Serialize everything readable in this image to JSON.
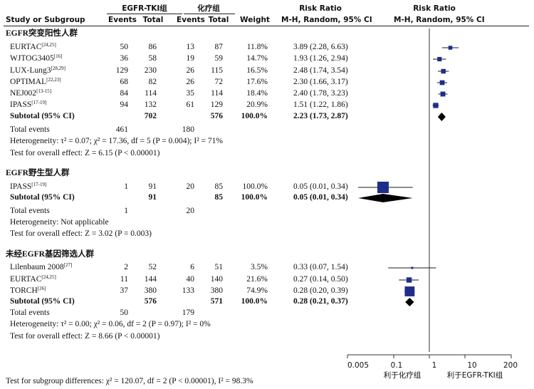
{
  "header": {
    "group1": "EGFR-TKI组",
    "group2": "化疗组",
    "rr_top": "Risk Ratio",
    "rr_top2": "Risk Ratio",
    "study": "Study or Subgroup",
    "events1": "Events",
    "total1": "Total",
    "events2": "Events",
    "total2": "Total",
    "weight": "Weight",
    "method": "M-H, Random, 95% CI",
    "method2": "M-H, Random, 95% CI"
  },
  "subgroups": [
    {
      "title": "EGFR突变阳性人群",
      "studies": [
        {
          "name": "EURTAC",
          "ref": "[24,25]",
          "e1": "50",
          "t1": "86",
          "e2": "13",
          "t2": "87",
          "w": "11.8%",
          "ci": "3.89 (2.28, 6.63)"
        },
        {
          "name": "WJTOG3405",
          "ref": "[16]",
          "e1": "36",
          "t1": "58",
          "e2": "19",
          "t2": "59",
          "w": "14.7%",
          "ci": "1.93 (1.26, 2.94)"
        },
        {
          "name": "LUX-Lung3",
          "ref": "[28,29]",
          "e1": "129",
          "t1": "230",
          "e2": "26",
          "t2": "115",
          "w": "16.5%",
          "ci": "2.48 (1.74, 3.54)"
        },
        {
          "name": "OPTIMAL",
          "ref": "[22,23]",
          "e1": "68",
          "t1": "82",
          "e2": "26",
          "t2": "72",
          "w": "17.6%",
          "ci": "2.30 (1.66, 3.17)"
        },
        {
          "name": "NEJ002",
          "ref": "[13-15]",
          "e1": "84",
          "t1": "114",
          "e2": "35",
          "t2": "114",
          "w": "18.4%",
          "ci": "2.40 (1.78, 3.23)"
        },
        {
          "name": "IPASS",
          "ref": "[17-19]",
          "e1": "94",
          "t1": "132",
          "e2": "61",
          "t2": "129",
          "w": "20.9%",
          "ci": "1.51 (1.22, 1.86)"
        }
      ],
      "subtotal": {
        "label": "Subtotal (95% CI)",
        "t1": "702",
        "t2": "576",
        "w": "100.0%",
        "ci": "2.23 (1.73, 2.87)"
      },
      "total_events": {
        "label": "Total events",
        "e1": "461",
        "e2": "180"
      },
      "heterogeneity": "Heterogeneity: τ² = 0.07; χ² = 17.36, df = 5 (P = 0.004); I² = 71%",
      "overall": "Test for overall effect: Z = 6.15 (P < 0.00001)"
    },
    {
      "title": "EGFR野生型人群",
      "studies": [
        {
          "name": "IPASS",
          "ref": "[17-19]",
          "e1": "1",
          "t1": "91",
          "e2": "20",
          "t2": "85",
          "w": "100.0%",
          "ci": "0.05 (0.01, 0.34)"
        }
      ],
      "subtotal": {
        "label": "Subtotal (95% CI)",
        "t1": "91",
        "t2": "85",
        "w": "100.0%",
        "ci": "0.05 (0.01, 0.34)"
      },
      "total_events": {
        "label": "Total events",
        "e1": "1",
        "e2": "20"
      },
      "heterogeneity": "Heterogeneity: Not applicable",
      "overall": "Test for overall effect: Z = 3.02 (P = 0.003)"
    },
    {
      "title": "未经EGFR基因筛选人群",
      "studies": [
        {
          "name": "Lilenbaum 2008",
          "ref": "[27]",
          "e1": "2",
          "t1": "52",
          "e2": "6",
          "t2": "51",
          "w": "3.5%",
          "ci": "0.33 (0.07, 1.54)"
        },
        {
          "name": "EURTAC",
          "ref": "[24,25]",
          "e1": "11",
          "t1": "144",
          "e2": "40",
          "t2": "140",
          "w": "21.6%",
          "ci": "0.27 (0.14, 0.50)"
        },
        {
          "name": "TORCH",
          "ref": "[26]",
          "e1": "37",
          "t1": "380",
          "e2": "133",
          "t2": "380",
          "w": "74.9%",
          "ci": "0.28 (0.20, 0.39)"
        }
      ],
      "subtotal": {
        "label": "Subtotal (95% CI)",
        "t1": "576",
        "t2": "571",
        "w": "100.0%",
        "ci": "0.28 (0.21, 0.37)"
      },
      "total_events": {
        "label": "Total events",
        "e1": "50",
        "e2": "179"
      },
      "heterogeneity": "Heterogeneity: τ² = 0.00; χ² = 0.06, df = 2 (P = 0.97); I² = 0%",
      "overall": "Test for overall effect: Z = 8.66 (P < 0.00001)"
    }
  ],
  "footer": "Test for subgroup differences: χ² = 120.07, df = 2 (P < 0.00001), I² = 98.3%",
  "axis": {
    "ticks": [
      "0.005",
      "0.1",
      "1",
      "10",
      "200"
    ],
    "favours_left": "利于化疗组",
    "favours_right": "利于EGFR-TKI组"
  },
  "chart_data": {
    "type": "forest",
    "xscale": "log",
    "xlim": [
      0.005,
      200
    ],
    "reference_line": 1,
    "colors": {
      "box": "#1f2d8a",
      "diamond": "#000000"
    },
    "studies": [
      {
        "group": 0,
        "name": "EURTAC",
        "rr": 3.89,
        "lo": 2.28,
        "hi": 6.63,
        "weight": 11.8
      },
      {
        "group": 0,
        "name": "WJTOG3405",
        "rr": 1.93,
        "lo": 1.26,
        "hi": 2.94,
        "weight": 14.7
      },
      {
        "group": 0,
        "name": "LUX-Lung3",
        "rr": 2.48,
        "lo": 1.74,
        "hi": 3.54,
        "weight": 16.5
      },
      {
        "group": 0,
        "name": "OPTIMAL",
        "rr": 2.3,
        "lo": 1.66,
        "hi": 3.17,
        "weight": 17.6
      },
      {
        "group": 0,
        "name": "NEJ002",
        "rr": 2.4,
        "lo": 1.78,
        "hi": 3.23,
        "weight": 18.4
      },
      {
        "group": 0,
        "name": "IPASS",
        "rr": 1.51,
        "lo": 1.22,
        "hi": 1.86,
        "weight": 20.9
      },
      {
        "group": 1,
        "name": "IPASS",
        "rr": 0.05,
        "lo": 0.01,
        "hi": 0.34,
        "weight": 100.0
      },
      {
        "group": 2,
        "name": "Lilenbaum 2008",
        "rr": 0.33,
        "lo": 0.07,
        "hi": 1.54,
        "weight": 3.5
      },
      {
        "group": 2,
        "name": "EURTAC",
        "rr": 0.27,
        "lo": 0.14,
        "hi": 0.5,
        "weight": 21.6
      },
      {
        "group": 2,
        "name": "TORCH",
        "rr": 0.28,
        "lo": 0.2,
        "hi": 0.39,
        "weight": 74.9
      }
    ],
    "subtotals": [
      {
        "group": 0,
        "rr": 2.23,
        "lo": 1.73,
        "hi": 2.87
      },
      {
        "group": 1,
        "rr": 0.05,
        "lo": 0.01,
        "hi": 0.34
      },
      {
        "group": 2,
        "rr": 0.28,
        "lo": 0.21,
        "hi": 0.37
      }
    ]
  }
}
